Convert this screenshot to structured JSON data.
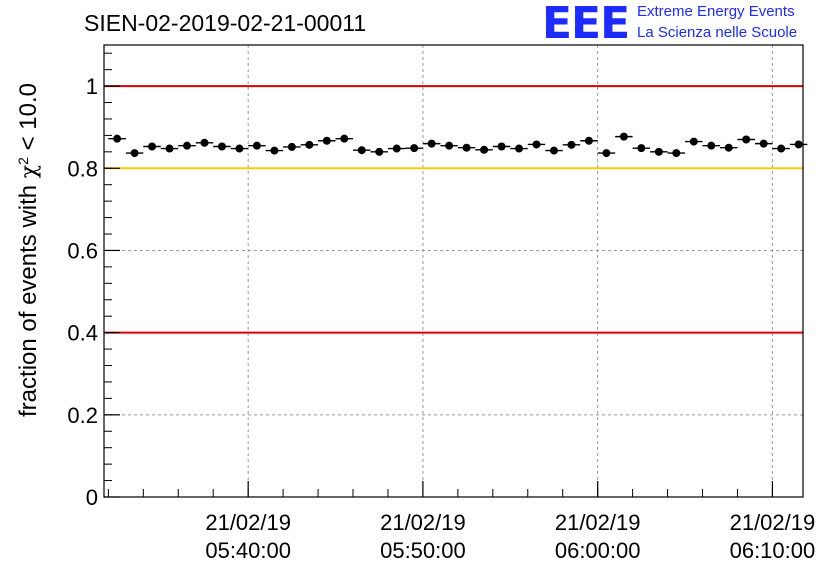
{
  "header": {
    "title": "SIEN-02-2019-02-21-00011",
    "logo_text": "EEE",
    "logo_line1": "Extreme Energy Events",
    "logo_line2": "La Scienza nelle Scuole",
    "logo_color": "#1c2bff"
  },
  "chart_data": {
    "type": "scatter",
    "title": "SIEN-02-2019-02-21-00011",
    "xlabel": "",
    "ylabel": "fraction of events with χ² < 10.0",
    "ylabel_main": "fraction of events with ",
    "ylabel_chi": "χ",
    "ylabel_exp": "2",
    "ylabel_tail": " < 10.0",
    "ylim": [
      0,
      1.1
    ],
    "yticks": [
      "0",
      "0.2",
      "0.4",
      "0.6",
      "0.8",
      "1"
    ],
    "xlim": [
      "05:31:45",
      "06:11:45"
    ],
    "xticks": [
      {
        "time": "05:40:00",
        "date": "21/02/19",
        "time_label": "05:40:00"
      },
      {
        "time": "05:50:00",
        "date": "21/02/19",
        "time_label": "05:50:00"
      },
      {
        "time": "06:00:00",
        "date": "21/02/19",
        "time_label": "06:00:00"
      },
      {
        "time": "06:10:00",
        "date": "21/02/19",
        "time_label": "06:10:00"
      }
    ],
    "grid": true,
    "reference_lines": [
      {
        "y": 1.0,
        "color": "#dd0000"
      },
      {
        "y": 0.8,
        "color": "#ffcc00"
      },
      {
        "y": 0.4,
        "color": "#dd0000"
      }
    ],
    "point_color": "#000000",
    "series": [
      {
        "x": [
          "05:32:30",
          "05:33:30",
          "05:34:30",
          "05:35:30",
          "05:36:30",
          "05:37:30",
          "05:38:30",
          "05:39:30",
          "05:40:30",
          "05:41:30",
          "05:42:30",
          "05:43:30",
          "05:44:30",
          "05:45:30",
          "05:46:30",
          "05:47:30",
          "05:48:30",
          "05:49:30",
          "05:50:30",
          "05:51:30",
          "05:52:30",
          "05:53:30",
          "05:54:30",
          "05:55:30",
          "05:56:30",
          "05:57:30",
          "05:58:30",
          "05:59:30",
          "06:00:30",
          "06:01:30",
          "06:02:30",
          "06:03:30",
          "06:04:30",
          "06:05:30",
          "06:06:30",
          "06:07:30",
          "06:08:30",
          "06:09:30",
          "06:10:30",
          "06:11:30"
        ],
        "y": [
          0.872,
          0.837,
          0.853,
          0.848,
          0.855,
          0.862,
          0.853,
          0.848,
          0.855,
          0.843,
          0.852,
          0.857,
          0.867,
          0.872,
          0.844,
          0.84,
          0.848,
          0.849,
          0.86,
          0.855,
          0.85,
          0.845,
          0.853,
          0.848,
          0.858,
          0.843,
          0.857,
          0.867,
          0.837,
          0.877,
          0.849,
          0.84,
          0.837,
          0.865,
          0.855,
          0.85,
          0.87,
          0.86,
          0.848,
          0.858
        ]
      }
    ]
  }
}
